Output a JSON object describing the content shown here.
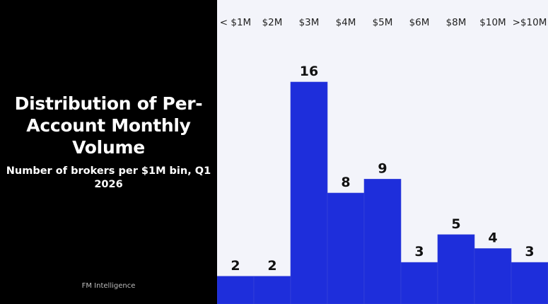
{
  "left": {
    "title": "Distribution of Per-Account Monthly Volume",
    "subtitle": "Number of brokers per $1M bin, Q1 2026",
    "source": "FM Intelligence"
  },
  "chart_data": {
    "type": "bar",
    "title": "Distribution of Per-Account Monthly Volume",
    "subtitle": "Number of brokers per $1M bin, Q1 2026",
    "categories": [
      "< $1M",
      "$2M",
      "$3M",
      "$4M",
      "$5M",
      "$6M",
      "$8M",
      "$10M",
      ">$10M"
    ],
    "values": [
      2,
      2,
      16,
      8,
      9,
      3,
      5,
      4,
      3
    ],
    "xlabel": "",
    "ylabel": "",
    "ylim": [
      0,
      16
    ],
    "tick_position": "top",
    "grid": false,
    "bar_color": "#1e2edb",
    "panel_background": "#f3f4fa"
  }
}
